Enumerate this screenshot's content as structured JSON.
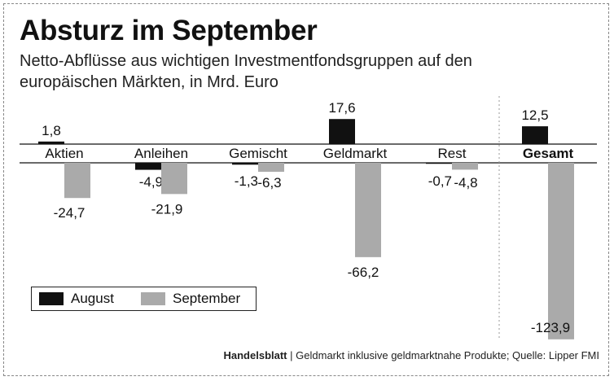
{
  "header": {
    "title": "Absturz im September",
    "subtitle_line1": "Netto-Abflüsse aus wichtigen Investmentfondsgruppen auf den",
    "subtitle_line2": "europäischen Märkten, in Mrd. Euro"
  },
  "footer": {
    "brand": "Handelsblatt",
    "separator": "|",
    "note": "Geldmarkt inklusive geldmarktnahe Produkte; Quelle: Lipper FMI"
  },
  "colors": {
    "august": "#111111",
    "september": "#aaaaaa",
    "axis": "#111111",
    "divider": "#999999"
  },
  "chart_data": {
    "type": "bar",
    "title": "Absturz im September",
    "subtitle": "Netto-Abflüsse aus wichtigen Investmentfondsgruppen auf den europäischen Märkten, in Mrd. Euro",
    "categories": [
      "Aktien",
      "Anleihen",
      "Gemischt",
      "Geldmarkt",
      "Rest",
      "Gesamt"
    ],
    "emphasized_category": "Gesamt",
    "series": [
      {
        "name": "August",
        "values": [
          1.8,
          -4.9,
          -1.3,
          17.6,
          -0.7,
          12.5
        ],
        "labels": [
          "1,8",
          "-4,9",
          "-1,3",
          "17,6",
          "-0,7",
          "12,5"
        ]
      },
      {
        "name": "September",
        "values": [
          -24.7,
          -21.9,
          -6.3,
          -66.2,
          -4.8,
          -123.9
        ],
        "labels": [
          "-24,7",
          "-21,9",
          "-6,3",
          "-66,2",
          "-4,8",
          "-123,9"
        ]
      }
    ],
    "ylim": [
      -123.9,
      17.6
    ],
    "legend": "bottom-left",
    "xlabel": "",
    "ylabel": ""
  }
}
